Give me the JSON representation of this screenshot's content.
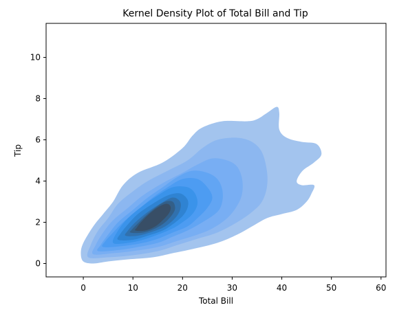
{
  "chart_data": {
    "type": "kde_filled_contour",
    "title": "Kernel Density Plot of Total Bill and Tip",
    "xlabel": "Total Bill",
    "ylabel": "Tip",
    "xlim": [
      -7.5,
      61
    ],
    "ylim": [
      -0.65,
      11.65
    ],
    "xticks": [
      0,
      10,
      20,
      30,
      40,
      50,
      60
    ],
    "yticks": [
      0,
      2,
      4,
      6,
      8,
      10
    ],
    "grid": false,
    "fill_color": "#1f77b4",
    "levels": [
      {
        "level": 1,
        "color": "#a3c4ee",
        "outline": [
          [
            0,
            0.1
          ],
          [
            2,
            0
          ],
          [
            5,
            0.1
          ],
          [
            9,
            0.2
          ],
          [
            14,
            0.3
          ],
          [
            18,
            0.5
          ],
          [
            22,
            0.7
          ],
          [
            27,
            1.0
          ],
          [
            31,
            1.4
          ],
          [
            34,
            1.8
          ],
          [
            37,
            2.2
          ],
          [
            40,
            2.4
          ],
          [
            43,
            2.6
          ],
          [
            45,
            3.0
          ],
          [
            46,
            3.4
          ],
          [
            46.5,
            3.8
          ],
          [
            44,
            3.8
          ],
          [
            43,
            4.0
          ],
          [
            44.2,
            4.5
          ],
          [
            46.5,
            4.9
          ],
          [
            48,
            5.3
          ],
          [
            47,
            5.8
          ],
          [
            44,
            5.9
          ],
          [
            41,
            6.1
          ],
          [
            39.5,
            6.5
          ],
          [
            39.5,
            7.3
          ],
          [
            39,
            7.6
          ],
          [
            37,
            7.3
          ],
          [
            35,
            7.0
          ],
          [
            33,
            6.9
          ],
          [
            28,
            6.9
          ],
          [
            24,
            6.6
          ],
          [
            22,
            6.2
          ],
          [
            20,
            5.6
          ],
          [
            16,
            4.9
          ],
          [
            11,
            4.4
          ],
          [
            8,
            3.8
          ],
          [
            6,
            3.0
          ],
          [
            4,
            2.4
          ],
          [
            2,
            1.8
          ],
          [
            0,
            1.0
          ],
          [
            -0.5,
            0.5
          ]
        ]
      },
      {
        "level": 2,
        "color": "#8cb7f0",
        "outline": [
          [
            1,
            0.3
          ],
          [
            5,
            0.3
          ],
          [
            10,
            0.4
          ],
          [
            15,
            0.6
          ],
          [
            19,
            0.9
          ],
          [
            23,
            1.2
          ],
          [
            27,
            1.5
          ],
          [
            31,
            2.0
          ],
          [
            34,
            2.5
          ],
          [
            36,
            3.0
          ],
          [
            37,
            3.7
          ],
          [
            37,
            4.5
          ],
          [
            36,
            5.4
          ],
          [
            34,
            5.9
          ],
          [
            31,
            6.1
          ],
          [
            27,
            6.0
          ],
          [
            24,
            5.6
          ],
          [
            21,
            5.0
          ],
          [
            17,
            4.5
          ],
          [
            13,
            4.0
          ],
          [
            10,
            3.5
          ],
          [
            7,
            2.9
          ],
          [
            5,
            2.2
          ],
          [
            3,
            1.6
          ],
          [
            1.5,
            0.9
          ]
        ]
      },
      {
        "level": 3,
        "color": "#78aef3",
        "outline": [
          [
            2,
            0.45
          ],
          [
            6,
            0.5
          ],
          [
            10,
            0.6
          ],
          [
            15,
            0.8
          ],
          [
            19,
            1.1
          ],
          [
            23,
            1.4
          ],
          [
            26,
            1.7
          ],
          [
            29,
            2.2
          ],
          [
            31,
            2.8
          ],
          [
            32,
            3.4
          ],
          [
            32,
            4.1
          ],
          [
            31,
            4.7
          ],
          [
            29,
            5.0
          ],
          [
            26,
            5.1
          ],
          [
            23,
            4.8
          ],
          [
            20,
            4.4
          ],
          [
            16,
            3.9
          ],
          [
            12,
            3.3
          ],
          [
            9,
            2.7
          ],
          [
            6,
            2.1
          ],
          [
            4,
            1.5
          ],
          [
            2.5,
            0.9
          ]
        ]
      },
      {
        "level": 4,
        "color": "#62a5f3",
        "outline": [
          [
            3,
            0.6
          ],
          [
            7,
            0.65
          ],
          [
            11,
            0.8
          ],
          [
            15,
            1.0
          ],
          [
            18,
            1.3
          ],
          [
            21,
            1.6
          ],
          [
            24,
            2.0
          ],
          [
            27,
            2.5
          ],
          [
            28,
            3.0
          ],
          [
            28,
            3.6
          ],
          [
            27,
            4.1
          ],
          [
            25,
            4.4
          ],
          [
            22,
            4.5
          ],
          [
            19,
            4.2
          ],
          [
            16,
            3.7
          ],
          [
            13,
            3.2
          ],
          [
            10,
            2.6
          ],
          [
            7,
            2.0
          ],
          [
            5,
            1.4
          ],
          [
            3.5,
            0.9
          ]
        ]
      },
      {
        "level": 5,
        "color": "#4d9cf2",
        "outline": [
          [
            4,
            0.8
          ],
          [
            8,
            0.85
          ],
          [
            12,
            1.0
          ],
          [
            15,
            1.2
          ],
          [
            18,
            1.5
          ],
          [
            21,
            1.8
          ],
          [
            23,
            2.2
          ],
          [
            25,
            2.7
          ],
          [
            26,
            3.2
          ],
          [
            25,
            3.7
          ],
          [
            23,
            4.1
          ],
          [
            20,
            4.1
          ],
          [
            17,
            3.7
          ],
          [
            14,
            3.2
          ],
          [
            11,
            2.6
          ],
          [
            8,
            2.0
          ],
          [
            6,
            1.5
          ],
          [
            4.5,
            1.1
          ]
        ]
      },
      {
        "level": 6,
        "color": "#3a93ea",
        "outline": [
          [
            6,
            1.0
          ],
          [
            9,
            1.0
          ],
          [
            12,
            1.15
          ],
          [
            15,
            1.4
          ],
          [
            18,
            1.7
          ],
          [
            20,
            2.0
          ],
          [
            22,
            2.4
          ],
          [
            23,
            2.9
          ],
          [
            22.5,
            3.4
          ],
          [
            21,
            3.7
          ],
          [
            18,
            3.7
          ],
          [
            15,
            3.3
          ],
          [
            12,
            2.8
          ],
          [
            9,
            2.2
          ],
          [
            7,
            1.6
          ]
        ]
      },
      {
        "level": 7,
        "color": "#2f83d2",
        "outline": [
          [
            7,
            1.15
          ],
          [
            10,
            1.15
          ],
          [
            13,
            1.35
          ],
          [
            16,
            1.6
          ],
          [
            18,
            1.9
          ],
          [
            20,
            2.3
          ],
          [
            21,
            2.7
          ],
          [
            21,
            3.1
          ],
          [
            19.5,
            3.4
          ],
          [
            17,
            3.3
          ],
          [
            14,
            2.9
          ],
          [
            11,
            2.4
          ],
          [
            9,
            1.9
          ],
          [
            7.5,
            1.45
          ]
        ]
      },
      {
        "level": 8,
        "color": "#3171ae",
        "outline": [
          [
            8.5,
            1.35
          ],
          [
            11,
            1.35
          ],
          [
            14,
            1.55
          ],
          [
            16.5,
            1.8
          ],
          [
            18.5,
            2.2
          ],
          [
            19.5,
            2.6
          ],
          [
            19.5,
            3.0
          ],
          [
            18,
            3.2
          ],
          [
            15.5,
            2.9
          ],
          [
            13,
            2.5
          ],
          [
            10.5,
            2.0
          ],
          [
            9,
            1.6
          ]
        ]
      },
      {
        "level": 9,
        "color": "#335f88",
        "outline": [
          [
            9.5,
            1.5
          ],
          [
            12,
            1.5
          ],
          [
            14.5,
            1.7
          ],
          [
            16.5,
            2.0
          ],
          [
            18,
            2.4
          ],
          [
            18.5,
            2.7
          ],
          [
            18,
            3.0
          ],
          [
            16.5,
            3.0
          ],
          [
            14.5,
            2.7
          ],
          [
            12.5,
            2.3
          ],
          [
            10.8,
            1.9
          ],
          [
            9.8,
            1.65
          ]
        ]
      },
      {
        "level": 10,
        "color": "#384e66",
        "outline": [
          [
            10.5,
            1.6
          ],
          [
            12.5,
            1.6
          ],
          [
            14.5,
            1.8
          ],
          [
            16,
            2.1
          ],
          [
            17.3,
            2.45
          ],
          [
            17.6,
            2.75
          ],
          [
            16.8,
            2.9
          ],
          [
            15.2,
            2.75
          ],
          [
            13.5,
            2.45
          ],
          [
            11.8,
            2.05
          ],
          [
            10.8,
            1.75
          ]
        ]
      }
    ]
  }
}
